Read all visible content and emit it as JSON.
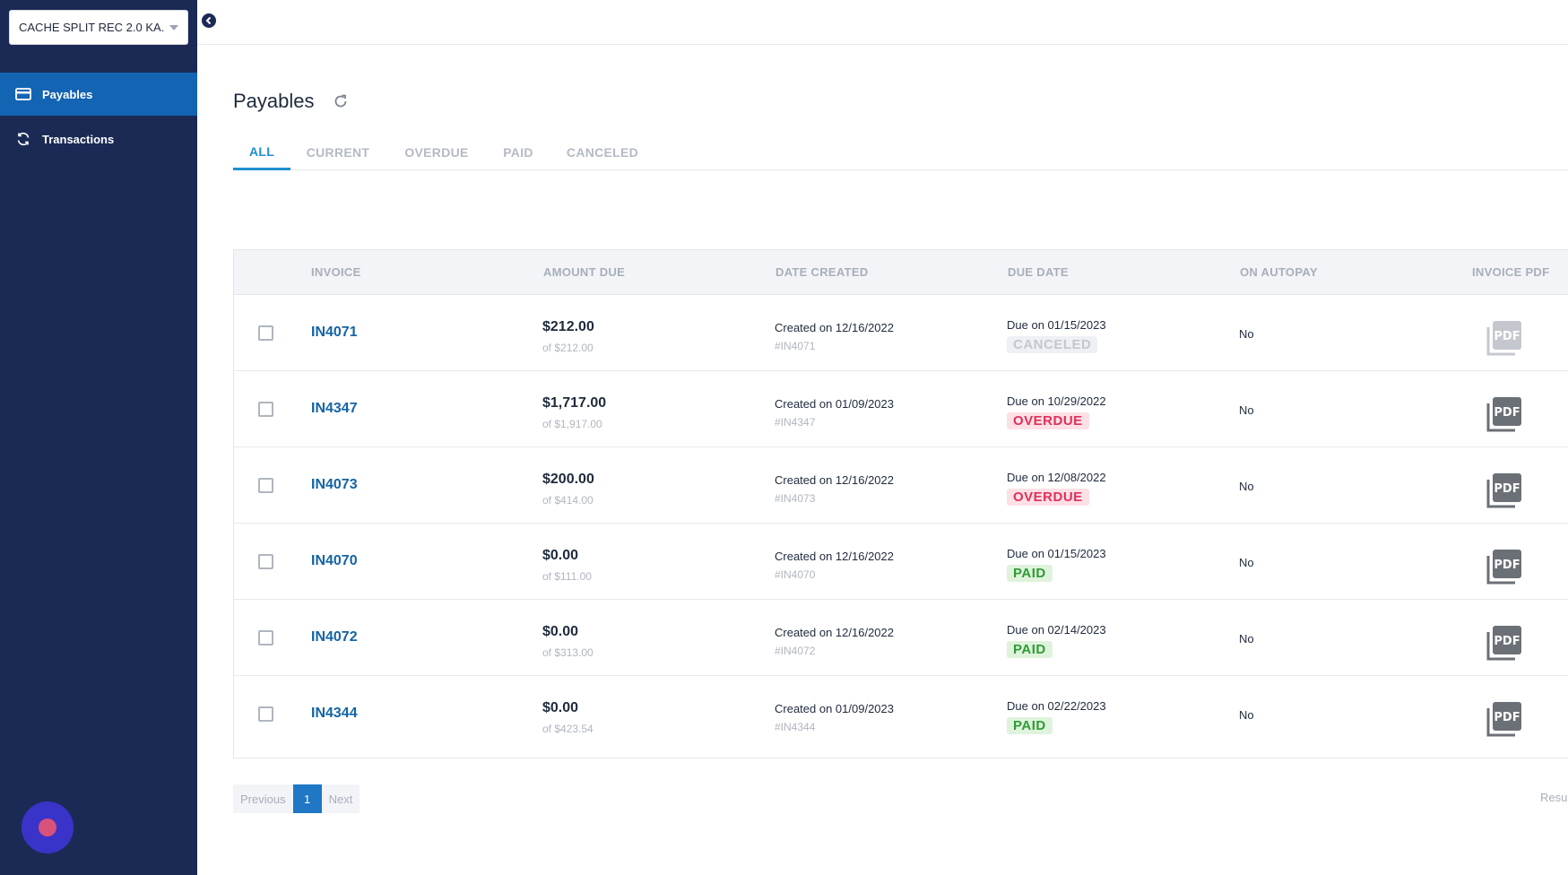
{
  "account_select": {
    "label": "CACHE SPLIT REC 2.0 KA..."
  },
  "sidebar": {
    "items": [
      {
        "label": "Payables",
        "icon": "credit-card-icon",
        "active": true
      },
      {
        "label": "Transactions",
        "icon": "refresh-icon",
        "active": false
      }
    ]
  },
  "page": {
    "title": "Payables"
  },
  "tabs": [
    {
      "label": "ALL",
      "active": true
    },
    {
      "label": "CURRENT",
      "active": false
    },
    {
      "label": "OVERDUE",
      "active": false
    },
    {
      "label": "PAID",
      "active": false
    },
    {
      "label": "CANCELED",
      "active": false
    }
  ],
  "table": {
    "columns": [
      "INVOICE",
      "AMOUNT DUE",
      "DATE CREATED",
      "DUE DATE",
      "ON AUTOPAY",
      "INVOICE PDF"
    ],
    "rows": [
      {
        "invoice": "IN4071",
        "amount": "$212.00",
        "amount_of": "of $212.00",
        "created": "Created on 12/16/2022",
        "ref": "#IN4071",
        "due": "Due on 01/15/2023",
        "status": "CANCELED",
        "autopay": "No"
      },
      {
        "invoice": "IN4347",
        "amount": "$1,717.00",
        "amount_of": "of $1,917.00",
        "created": "Created on 01/09/2023",
        "ref": "#IN4347",
        "due": "Due on 10/29/2022",
        "status": "OVERDUE",
        "autopay": "No"
      },
      {
        "invoice": "IN4073",
        "amount": "$200.00",
        "amount_of": "of $414.00",
        "created": "Created on 12/16/2022",
        "ref": "#IN4073",
        "due": "Due on 12/08/2022",
        "status": "OVERDUE",
        "autopay": "No"
      },
      {
        "invoice": "IN4070",
        "amount": "$0.00",
        "amount_of": "of $111.00",
        "created": "Created on 12/16/2022",
        "ref": "#IN4070",
        "due": "Due on 01/15/2023",
        "status": "PAID",
        "autopay": "No"
      },
      {
        "invoice": "IN4072",
        "amount": "$0.00",
        "amount_of": "of $313.00",
        "created": "Created on 12/16/2022",
        "ref": "#IN4072",
        "due": "Due on 02/14/2023",
        "status": "PAID",
        "autopay": "No"
      },
      {
        "invoice": "IN4344",
        "amount": "$0.00",
        "amount_of": "of $423.54",
        "created": "Created on 01/09/2023",
        "ref": "#IN4344",
        "due": "Due on 02/22/2023",
        "status": "PAID",
        "autopay": "No"
      }
    ]
  },
  "pdf_icon": {
    "label": "PDF"
  },
  "pagination": {
    "previous": "Previous",
    "current": "1",
    "next": "Next"
  },
  "results_text": "Resu",
  "colors": {
    "sidebar_bg": "#1b2a55",
    "active_nav": "#1464b4",
    "accent": "#1f8fd0",
    "link": "#1464a5",
    "status_canceled_bg": "#eef0f3",
    "status_canceled_fg": "#c3c8cf",
    "status_overdue_bg": "#fde0e6",
    "status_overdue_fg": "#e0305a",
    "status_paid_bg": "#dff3dc",
    "status_paid_fg": "#2e9b34"
  }
}
